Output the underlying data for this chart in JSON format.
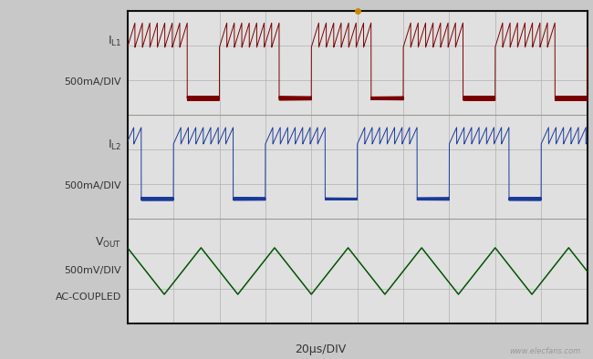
{
  "bg_color": "#c8c8c8",
  "plot_bg_color": "#e0e0e0",
  "grid_color": "#b0b0b0",
  "border_color": "#111111",
  "IL1_color": "#7a0000",
  "IL2_color": "#1a3a99",
  "VOUT_color": "#005500",
  "xlabel": "20μs/DIV",
  "watermark": "www.elecfans.com",
  "n_hdiv": 10,
  "n_vdiv": 9,
  "trigger_color": "#cc8800",
  "IL1_label_top": "I",
  "IL1_label_sub": "L1",
  "IL1_label_bot": "500mA/DIV",
  "IL2_label_top": "I",
  "IL2_label_sub": "L2",
  "IL2_label_bot": "500mA/DIV",
  "VOUT_label_top": "V",
  "VOUT_label_sub": "OUT",
  "VOUT_label_bot1": "500mV/DIV",
  "VOUT_label_bot2": "AC-COUPLED"
}
